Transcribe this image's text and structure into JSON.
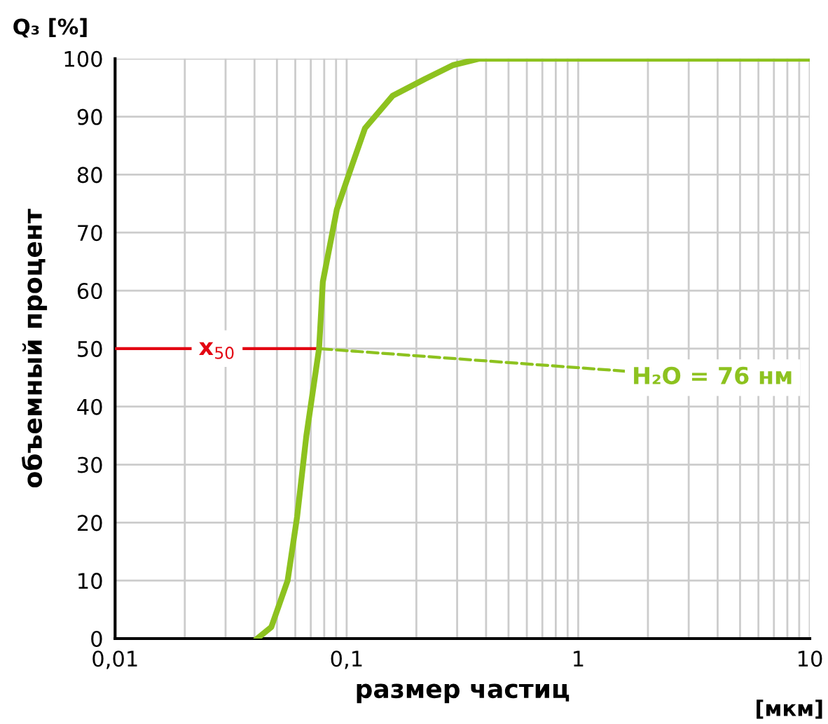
{
  "chart_data": {
    "type": "line",
    "xlabel": "размер частиц",
    "ylabel": "объемный процент",
    "log": "x",
    "grid": true,
    "legend": false,
    "marker": "none",
    "line_style": "solid",
    "xlim": [
      0.01,
      10
    ],
    "xticks": [
      {
        "value": 0.01,
        "label": "0,01"
      },
      {
        "value": 0.1,
        "label": "0,1"
      },
      1,
      10
    ],
    "ylim": [
      0,
      100
    ],
    "yticks": [
      0,
      10,
      20,
      30,
      40,
      50,
      60,
      70,
      80,
      90,
      100
    ],
    "series": [
      {
        "color": "#8dc21f",
        "x": [
          0.0411,
          0.0473,
          0.0556,
          0.0611,
          0.067,
          0.076,
          0.0789,
          0.0907,
          0.1042,
          0.12,
          0.158,
          0.218,
          0.289,
          0.375,
          10
        ],
        "values": [
          0,
          2,
          10,
          21,
          35,
          50,
          61.5,
          74,
          81,
          88,
          93.6,
          96.5,
          98.9,
          100,
          100
        ]
      },
      {
        "name": "x$_{50}$",
        "color": "#e30613",
        "x": [
          0.01,
          0.076
        ],
        "values": [
          50,
          50
        ]
      }
    ],
    "annotations": [
      "Q₃ [%]",
      "[мкм]",
      {
        "text": "H₂O = 76 нм",
        "x": 0.076,
        "y": 50
      }
    ]
  }
}
